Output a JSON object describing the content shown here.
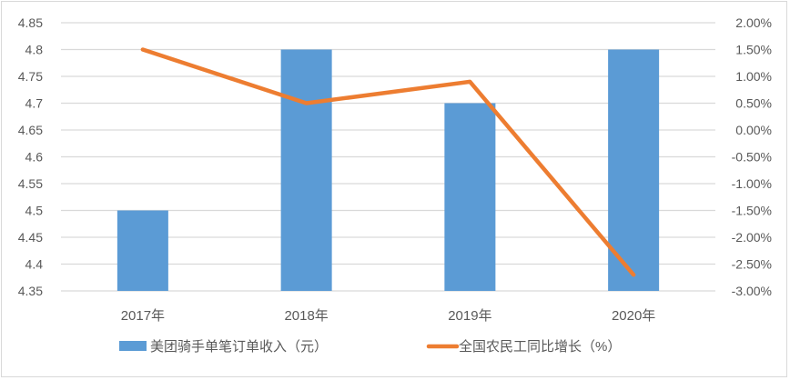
{
  "chart_data": {
    "type": "bar+line",
    "title": "",
    "categories": [
      "2017年",
      "2018年",
      "2019年",
      "2020年"
    ],
    "series": [
      {
        "name": "美团骑手单笔订单收入（元）",
        "type": "bar",
        "axis": "left",
        "color": "#5b9bd5",
        "values": [
          4.5,
          4.8,
          4.7,
          4.8
        ]
      },
      {
        "name": "全国农民工同比增长（%）",
        "type": "line",
        "axis": "right",
        "color": "#ed7d31",
        "values": [
          1.5,
          0.5,
          0.9,
          -2.7
        ]
      }
    ],
    "left_axis": {
      "ylim": [
        4.35,
        4.85
      ],
      "ticks": [
        "4.85",
        "4.8",
        "4.75",
        "4.7",
        "4.65",
        "4.6",
        "4.55",
        "4.5",
        "4.45",
        "4.4",
        "4.35"
      ]
    },
    "right_axis": {
      "ylim": [
        -3.0,
        2.0
      ],
      "ticks": [
        "2.00%",
        "1.50%",
        "1.00%",
        "0.50%",
        "0.00%",
        "-0.50%",
        "-1.00%",
        "-1.50%",
        "-2.00%",
        "-2.50%",
        "-3.00%"
      ]
    },
    "grid": true,
    "legend_position": "bottom"
  },
  "legend": {
    "bar_label": "美团骑手单笔订单收入（元）",
    "line_label": "全国农民工同比增长（%）"
  }
}
